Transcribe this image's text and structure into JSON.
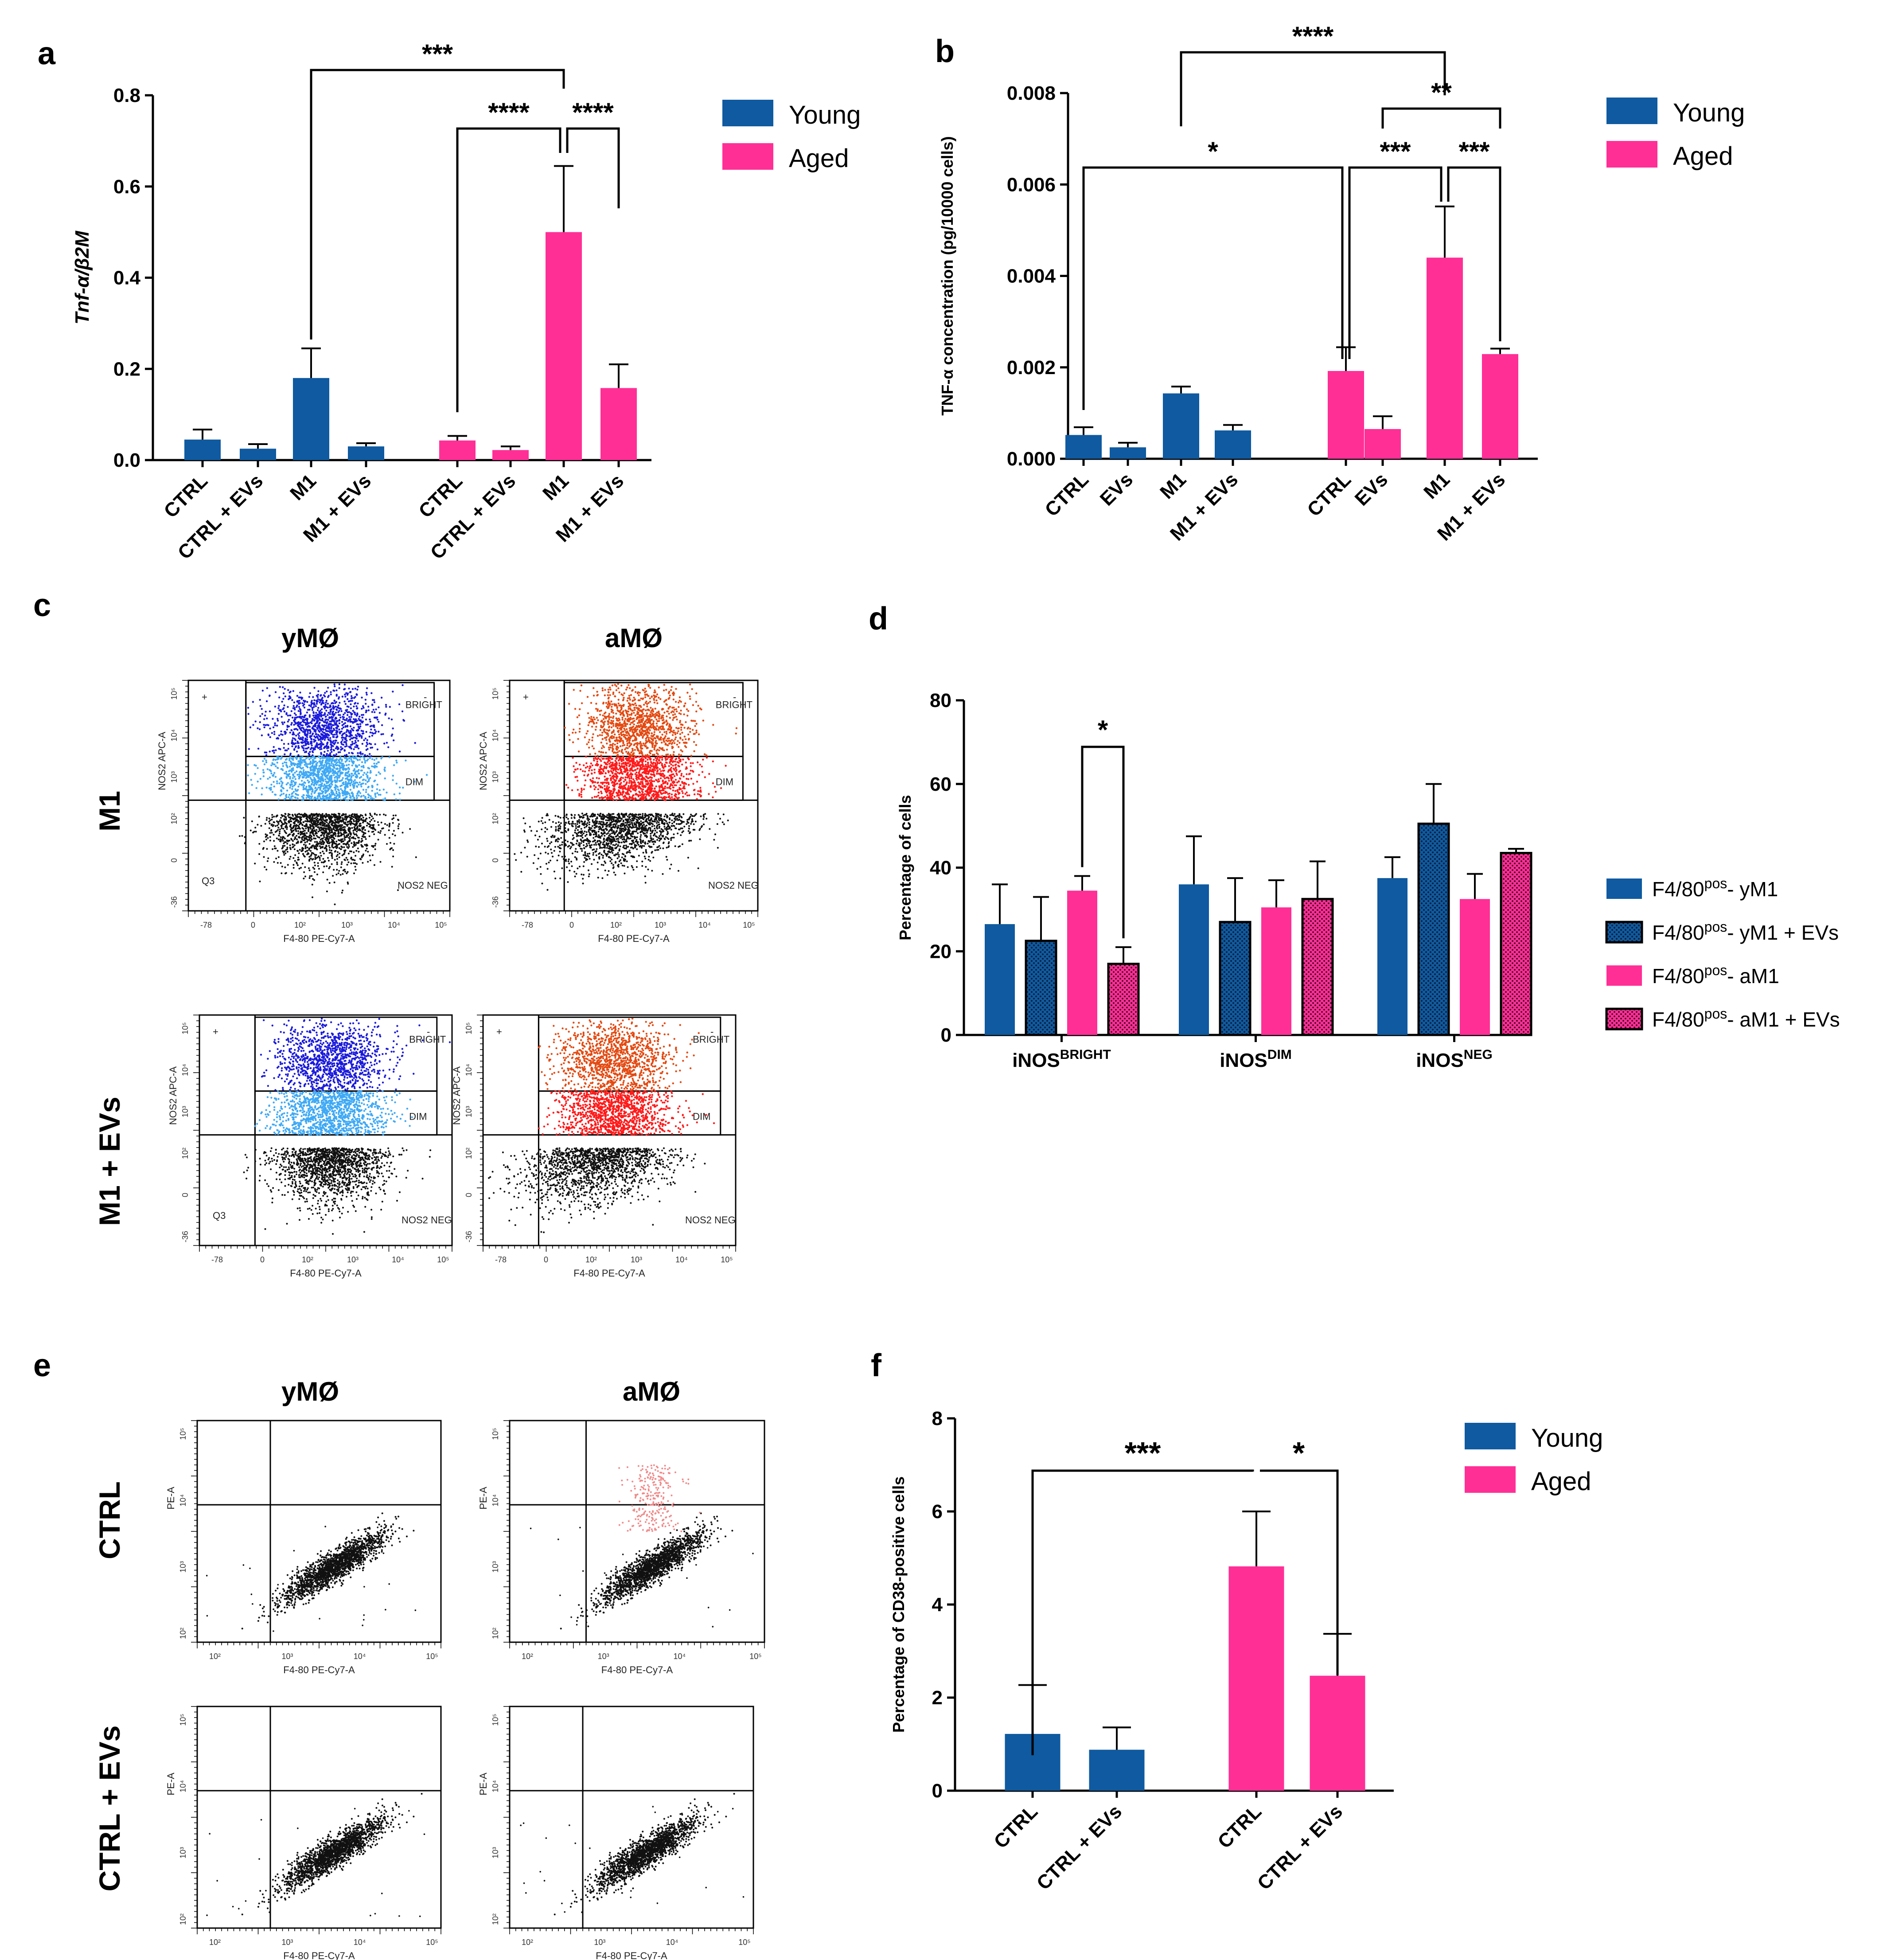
{
  "colors": {
    "young": "#0F5AA0",
    "aged": "#FF2F96",
    "young_hatch_dot": "#0B1F3A",
    "aged_hatch_dot": "#4A0A28",
    "dot_blue_dark": "#1B1BDB",
    "dot_blue_light": "#3FA9F5",
    "dot_red_dark": "#E34A12",
    "dot_red_light": "#FF1A1A",
    "dot_pink": "#F08A8A",
    "dot_black": "#111111"
  },
  "panels": {
    "a": {
      "letter": "a"
    },
    "b": {
      "letter": "b"
    },
    "c": {
      "letter": "c",
      "col_headers": [
        "yMØ",
        "aMØ"
      ],
      "row_headers": [
        "M1",
        "M1 + EVs"
      ]
    },
    "d": {
      "letter": "d"
    },
    "e": {
      "letter": "e",
      "col_headers": [
        "yMØ",
        "aMØ"
      ],
      "row_headers": [
        "CTRL",
        "CTRL + EVs"
      ]
    },
    "f": {
      "letter": "f"
    }
  },
  "flow": {
    "c": {
      "xlabel": "F4-80 PE-Cy7-A",
      "ylabel": "NOS2 APC-A",
      "gate_labels": {
        "bright": "BRIGHT",
        "dim": "DIM",
        "neg": "NOS2 NEG",
        "q3": "Q3",
        "plus": "+",
        "minus": "-"
      },
      "x_ticks": [
        "-78",
        "0",
        "10²",
        "10³",
        "10⁴",
        "10⁵"
      ],
      "y_ticks": [
        "10⁵",
        "10⁴",
        "10³",
        "10²",
        "0",
        "-36"
      ]
    },
    "e": {
      "xlabel": "F4-80 PE-Cy7-A",
      "ylabel": "PE-A",
      "x_ticks": [
        "10²",
        "10³",
        "10⁴",
        "10⁵"
      ],
      "y_ticks": [
        "10⁵",
        "10⁴",
        "10³",
        "10²"
      ]
    }
  },
  "chart_data": [
    {
      "id": "a",
      "type": "bar",
      "ylabel": "Tnf-α/β2M",
      "ylim": [
        0,
        0.8
      ],
      "yticks": [
        "0.0",
        "0.2",
        "0.4",
        "0.6",
        "0.8"
      ],
      "ytick_values": [
        0,
        0.2,
        0.4,
        0.6,
        0.8
      ],
      "categories": [
        "CTRL",
        "CTRL + EVs",
        "M1",
        "M1 + EVs",
        "CTRL",
        "CTRL + EVs",
        "M1",
        "M1 + EVs"
      ],
      "groups": [
        "young",
        "young",
        "young",
        "young",
        "aged",
        "aged",
        "aged",
        "aged"
      ],
      "values": [
        0.045,
        0.025,
        0.18,
        0.03,
        0.043,
        0.022,
        0.5,
        0.158
      ],
      "errors": [
        0.022,
        0.01,
        0.065,
        0.007,
        0.01,
        0.008,
        0.145,
        0.052
      ],
      "legend": [
        "Young",
        "Aged"
      ],
      "significance": [
        {
          "from": 2,
          "to": 6,
          "label": "***"
        },
        {
          "from": 4,
          "to": 6,
          "label": "****"
        },
        {
          "from": 6,
          "to": 7,
          "label": "****"
        }
      ]
    },
    {
      "id": "b",
      "type": "bar",
      "ylabel": "TNF-α concentration (pg/10000 cells)",
      "ylim": [
        0,
        0.008
      ],
      "yticks": [
        "0.000",
        "0.002",
        "0.004",
        "0.006",
        "0.008"
      ],
      "ytick_values": [
        0,
        0.002,
        0.004,
        0.006,
        0.008
      ],
      "categories": [
        "CTRL",
        "EVs",
        "M1",
        "M1 + EVs",
        "CTRL",
        "EVs",
        "M1",
        "M1 + EVs"
      ],
      "groups": [
        "young",
        "young",
        "young",
        "young",
        "aged",
        "aged",
        "aged",
        "aged"
      ],
      "values": [
        0.00052,
        0.00025,
        0.00143,
        0.00062,
        0.00192,
        0.00065,
        0.0044,
        0.00229
      ],
      "errors": [
        0.00017,
        0.0001,
        0.00015,
        0.00012,
        0.00052,
        0.00028,
        0.00112,
        0.00012
      ],
      "legend": [
        "Young",
        "Aged"
      ],
      "significance": [
        {
          "from": 2,
          "to": 6,
          "label": "****"
        },
        {
          "from": 5,
          "to": 7,
          "label": "**"
        },
        {
          "from": 0,
          "to": 4,
          "label": "*"
        },
        {
          "from": 4,
          "to": 6,
          "label": "***"
        },
        {
          "from": 6,
          "to": 7,
          "label": "***"
        }
      ]
    },
    {
      "id": "d",
      "type": "bar",
      "ylabel": "Percentage of cells",
      "ylim": [
        0,
        80
      ],
      "yticks": [
        "0",
        "20",
        "40",
        "60",
        "80"
      ],
      "ytick_values": [
        0,
        20,
        40,
        60,
        80
      ],
      "categories": [
        {
          "base": "iNOS",
          "sup": "BRIGHT"
        },
        {
          "base": "iNOS",
          "sup": "DIM"
        },
        {
          "base": "iNOS",
          "sup": "NEG"
        }
      ],
      "series": [
        {
          "name": {
            "pre": "F4/80",
            "sup": "pos",
            "post": "- yM1"
          },
          "color": "young",
          "hatched": false,
          "values": [
            26.5,
            36,
            37.5
          ],
          "errors": [
            9.5,
            11.5,
            5
          ]
        },
        {
          "name": {
            "pre": "F4/80",
            "sup": "pos",
            "post": "- yM1  + EVs"
          },
          "color": "young",
          "hatched": true,
          "values": [
            22.5,
            27,
            50.5
          ],
          "errors": [
            10.5,
            10.5,
            9.5
          ]
        },
        {
          "name": {
            "pre": "F4/80",
            "sup": "pos",
            "post": "- aM1"
          },
          "color": "aged",
          "hatched": false,
          "values": [
            34.5,
            30.5,
            32.5
          ],
          "errors": [
            3.5,
            6.5,
            6
          ]
        },
        {
          "name": {
            "pre": "F4/80",
            "sup": "pos",
            "post": "- aM1  + EVs"
          },
          "color": "aged",
          "hatched": true,
          "values": [
            17,
            32.5,
            43.5
          ],
          "errors": [
            4,
            9,
            1
          ]
        }
      ],
      "significance": [
        {
          "group": 0,
          "from_series": 2,
          "to_series": 3,
          "label": "*"
        }
      ]
    },
    {
      "id": "f",
      "type": "bar",
      "ylabel": "Percentage of CD38-positive cells",
      "ylim": [
        0,
        8
      ],
      "yticks": [
        "0",
        "2",
        "4",
        "6",
        "8"
      ],
      "ytick_values": [
        0,
        2,
        4,
        6,
        8
      ],
      "categories": [
        "CTRL",
        "CTRL + EVs",
        "CTRL",
        "CTRL + EVs"
      ],
      "groups": [
        "young",
        "young",
        "aged",
        "aged"
      ],
      "values": [
        1.22,
        0.88,
        4.82,
        2.47
      ],
      "errors": [
        1.05,
        0.48,
        1.18,
        0.9
      ],
      "legend": [
        "Young",
        "Aged"
      ],
      "significance": [
        {
          "from": 0,
          "to": 2,
          "label": "***"
        },
        {
          "from": 2,
          "to": 3,
          "label": "*"
        }
      ]
    }
  ]
}
